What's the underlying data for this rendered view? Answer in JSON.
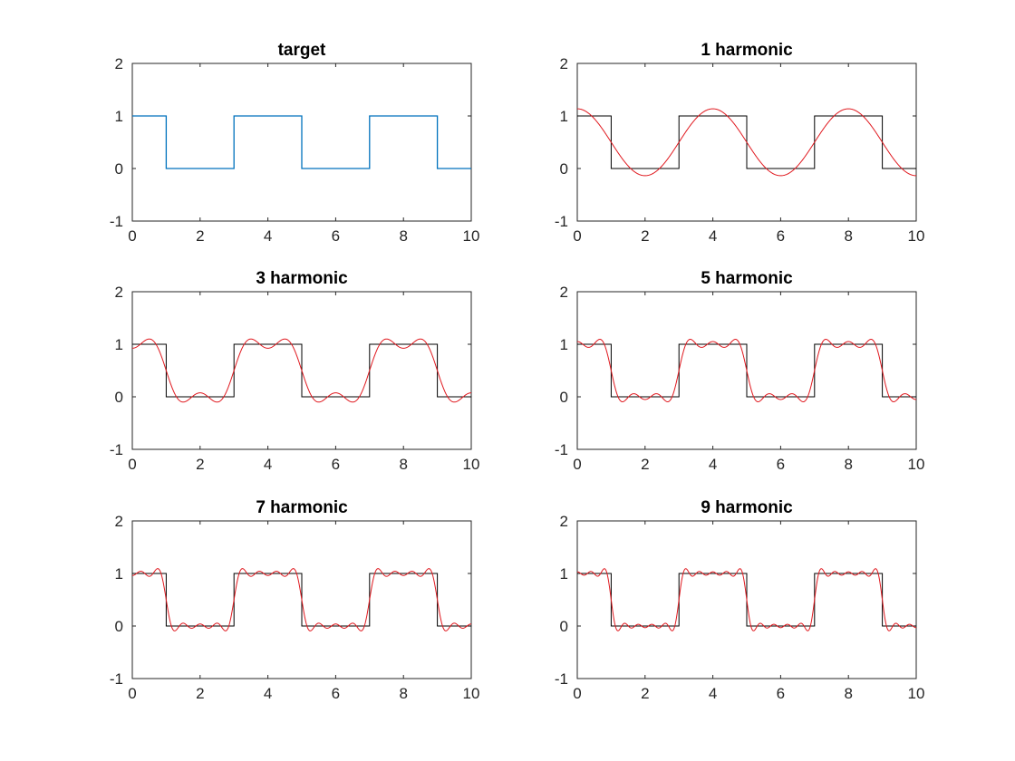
{
  "figure": {
    "background": "#ffffff"
  },
  "colors": {
    "target": "#0072BD",
    "square": "#000000",
    "approx": "#E0191F"
  },
  "chart_data": [
    {
      "type": "line",
      "title": "target",
      "xlim": [
        0,
        10
      ],
      "ylim": [
        -1,
        2
      ],
      "xticks": [
        0,
        2,
        4,
        6,
        8,
        10
      ],
      "yticks": [
        -1,
        0,
        1,
        2
      ],
      "grid": false,
      "series": [
        {
          "role": "square",
          "color_key": "target",
          "x": [
            0,
            1,
            1,
            3,
            3,
            5,
            5,
            7,
            7,
            9,
            9,
            10
          ],
          "y": [
            1,
            1,
            0,
            0,
            1,
            1,
            0,
            0,
            1,
            1,
            0,
            0
          ]
        }
      ]
    },
    {
      "type": "line",
      "title": "1 harmonic",
      "xlim": [
        0,
        10
      ],
      "ylim": [
        -1,
        2
      ],
      "xticks": [
        0,
        2,
        4,
        6,
        8,
        10
      ],
      "yticks": [
        -1,
        0,
        1,
        2
      ],
      "grid": false,
      "harmonics": 1,
      "series": [
        {
          "role": "square",
          "color_key": "square",
          "x": [
            0,
            1,
            1,
            3,
            3,
            5,
            5,
            7,
            7,
            9,
            9,
            10
          ],
          "y": [
            1,
            1,
            0,
            0,
            1,
            1,
            0,
            0,
            1,
            1,
            0,
            0
          ]
        },
        {
          "role": "fourier",
          "color_key": "approx",
          "period": 4,
          "offset": 0.5,
          "amplitude": 0.6366,
          "phase_shift": 4
        }
      ]
    },
    {
      "type": "line",
      "title": "3 harmonic",
      "xlim": [
        0,
        10
      ],
      "ylim": [
        -1,
        2
      ],
      "xticks": [
        0,
        2,
        4,
        6,
        8,
        10
      ],
      "yticks": [
        -1,
        0,
        1,
        2
      ],
      "grid": false,
      "harmonics": 3,
      "series": [
        {
          "role": "square",
          "color_key": "square",
          "x": [
            0,
            1,
            1,
            3,
            3,
            5,
            5,
            7,
            7,
            9,
            9,
            10
          ],
          "y": [
            1,
            1,
            0,
            0,
            1,
            1,
            0,
            0,
            1,
            1,
            0,
            0
          ]
        },
        {
          "role": "fourier",
          "color_key": "approx",
          "period": 4,
          "offset": 0.5,
          "amplitude": 0.6366,
          "phase_shift": 4
        }
      ]
    },
    {
      "type": "line",
      "title": "5 harmonic",
      "xlim": [
        0,
        10
      ],
      "ylim": [
        -1,
        2
      ],
      "xticks": [
        0,
        2,
        4,
        6,
        8,
        10
      ],
      "yticks": [
        -1,
        0,
        1,
        2
      ],
      "grid": false,
      "harmonics": 5,
      "series": [
        {
          "role": "square",
          "color_key": "square",
          "x": [
            0,
            1,
            1,
            3,
            3,
            5,
            5,
            7,
            7,
            9,
            9,
            10
          ],
          "y": [
            1,
            1,
            0,
            0,
            1,
            1,
            0,
            0,
            1,
            1,
            0,
            0
          ]
        },
        {
          "role": "fourier",
          "color_key": "approx",
          "period": 4,
          "offset": 0.5,
          "amplitude": 0.6366,
          "phase_shift": 4
        }
      ]
    },
    {
      "type": "line",
      "title": "7 harmonic",
      "xlim": [
        0,
        10
      ],
      "ylim": [
        -1,
        2
      ],
      "xticks": [
        0,
        2,
        4,
        6,
        8,
        10
      ],
      "yticks": [
        -1,
        0,
        1,
        2
      ],
      "grid": false,
      "harmonics": 7,
      "series": [
        {
          "role": "square",
          "color_key": "square",
          "x": [
            0,
            1,
            1,
            3,
            3,
            5,
            5,
            7,
            7,
            9,
            9,
            10
          ],
          "y": [
            1,
            1,
            0,
            0,
            1,
            1,
            0,
            0,
            1,
            1,
            0,
            0
          ]
        },
        {
          "role": "fourier",
          "color_key": "approx",
          "period": 4,
          "offset": 0.5,
          "amplitude": 0.6366,
          "phase_shift": 4
        }
      ]
    },
    {
      "type": "line",
      "title": "9 harmonic",
      "xlim": [
        0,
        10
      ],
      "ylim": [
        -1,
        2
      ],
      "xticks": [
        0,
        2,
        4,
        6,
        8,
        10
      ],
      "yticks": [
        -1,
        0,
        1,
        2
      ],
      "grid": false,
      "harmonics": 9,
      "series": [
        {
          "role": "square",
          "color_key": "square",
          "x": [
            0,
            1,
            1,
            3,
            3,
            5,
            5,
            7,
            7,
            9,
            9,
            10
          ],
          "y": [
            1,
            1,
            0,
            0,
            1,
            1,
            0,
            0,
            1,
            1,
            0,
            0
          ]
        },
        {
          "role": "fourier",
          "color_key": "approx",
          "period": 4,
          "offset": 0.5,
          "amplitude": 0.6366,
          "phase_shift": 4
        }
      ]
    }
  ]
}
